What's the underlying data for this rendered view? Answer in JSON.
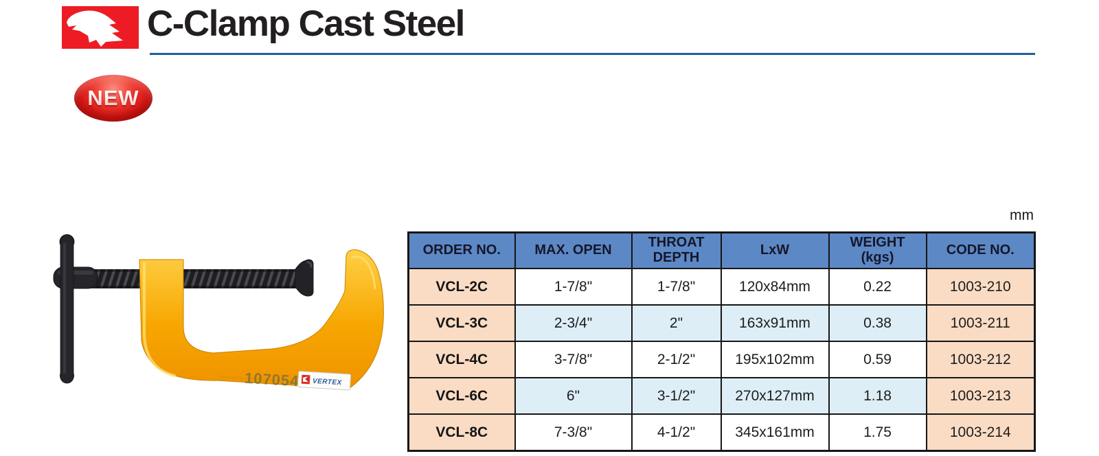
{
  "page": {
    "unit_label": "mm"
  },
  "header": {
    "title": "C-Clamp Cast Steel",
    "badge_label": "NEW"
  },
  "clamp": {
    "stamp": "107054",
    "label_text": "VERTEX"
  },
  "table": {
    "columns": [
      "ORDER NO.",
      "MAX. OPEN",
      "THROAT\nDEPTH",
      "LxW",
      "WEIGHT\n(kgs)",
      "CODE NO."
    ],
    "rows": [
      [
        "VCL-2C",
        "1-7/8\"",
        "1-7/8\"",
        "120x84mm",
        "0.22",
        "1003-210"
      ],
      [
        "VCL-3C",
        "2-3/4\"",
        "2\"",
        "163x91mm",
        "0.38",
        "1003-211"
      ],
      [
        "VCL-4C",
        "3-7/8\"",
        "2-1/2\"",
        "195x102mm",
        "0.59",
        "1003-212"
      ],
      [
        "VCL-6C",
        "6\"",
        "3-1/2\"",
        "270x127mm",
        "1.18",
        "1003-213"
      ],
      [
        "VCL-8C",
        "7-3/8\"",
        "4-1/2\"",
        "345x161mm",
        "1.75",
        "1003-214"
      ]
    ]
  },
  "colors": {
    "title_underline": "#1c5f9e",
    "table_header_bg": "#5c88c5",
    "row_accent_bg": "#fadcc4",
    "row_alt_bg": "#ddeef7",
    "table_border": "#151515",
    "logo_red": "#ed1c24",
    "badge_red": "#de1b17",
    "clamp_yellow": "#f7a600"
  }
}
